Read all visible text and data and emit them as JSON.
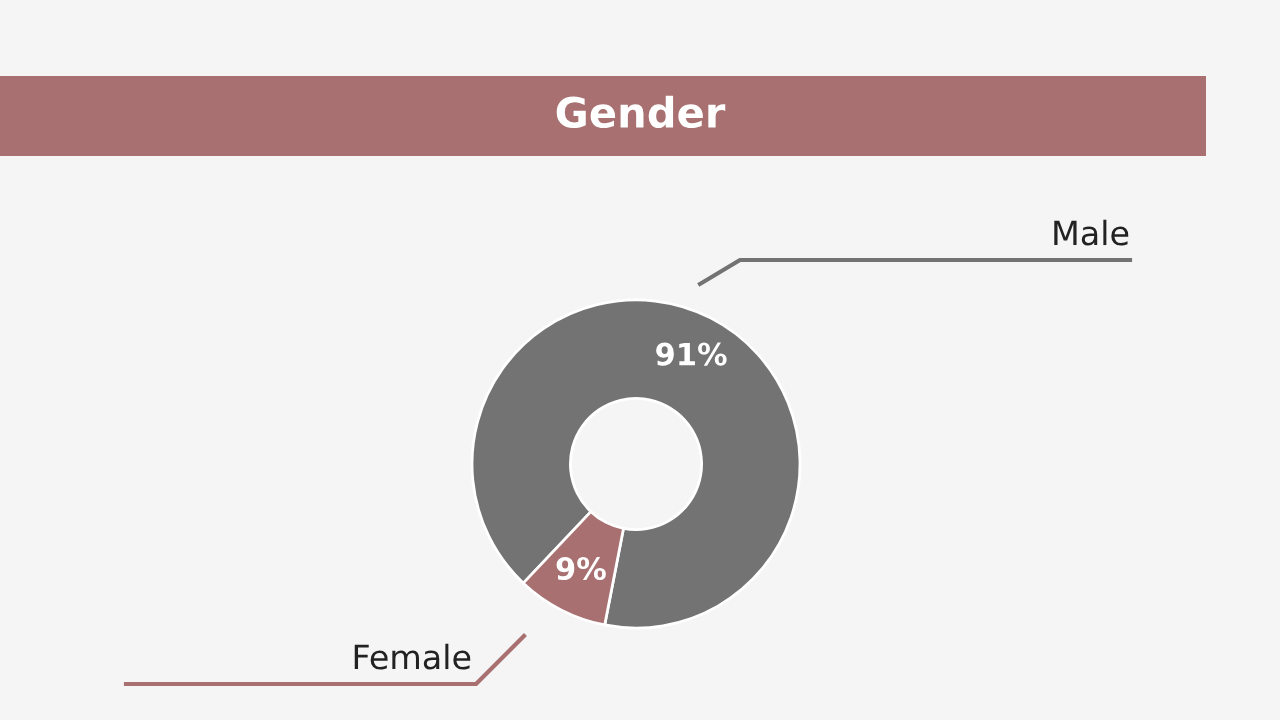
{
  "chart_data": {
    "type": "donut",
    "title": "Gender",
    "categories": [
      "Male",
      "Female"
    ],
    "values": [
      91,
      9
    ],
    "colors": [
      "#737373",
      "#a87070"
    ],
    "value_labels": [
      "91%",
      "9%"
    ],
    "legend": false
  }
}
